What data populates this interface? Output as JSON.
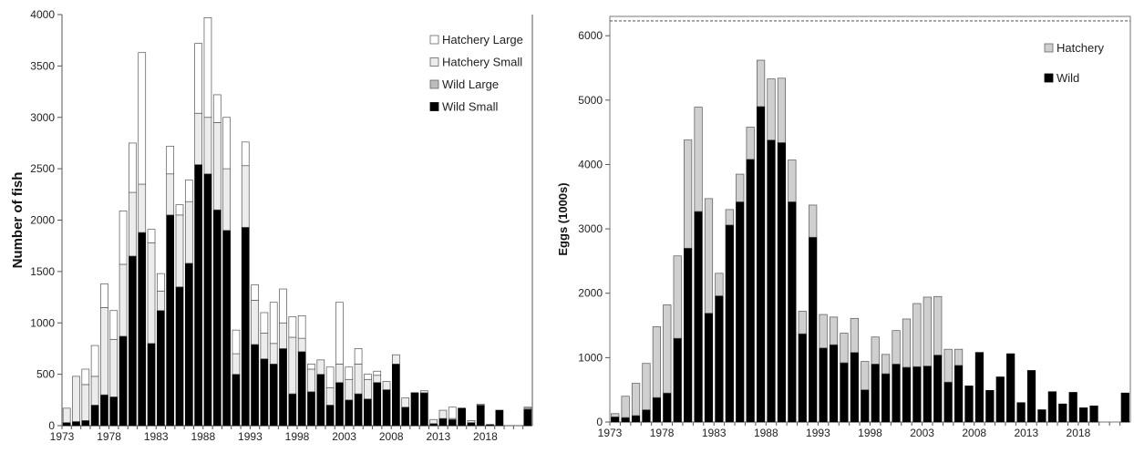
{
  "chart_data": [
    {
      "type": "bar",
      "stacked": true,
      "title": "",
      "xlabel": "",
      "ylabel": "Number of fish",
      "ylim": [
        0,
        4000
      ],
      "yticks": [
        0,
        500,
        1000,
        1500,
        2000,
        2500,
        3000,
        3500,
        4000
      ],
      "xtick_labels": [
        "1973",
        "1978",
        "1983",
        "1988",
        "1993",
        "1998",
        "2003",
        "2008",
        "2013",
        "2018"
      ],
      "legend_position": "top-right",
      "x": [
        1973,
        1974,
        1975,
        1976,
        1977,
        1978,
        1979,
        1980,
        1981,
        1982,
        1983,
        1984,
        1985,
        1986,
        1987,
        1988,
        1989,
        1990,
        1991,
        1992,
        1993,
        1994,
        1995,
        1996,
        1997,
        1998,
        1999,
        2000,
        2001,
        2002,
        2003,
        2004,
        2005,
        2006,
        2007,
        2008,
        2009,
        2010,
        2011,
        2012,
        2013,
        2014,
        2015,
        2016,
        2017,
        2018,
        2019,
        2020,
        2021,
        2022
      ],
      "series": [
        {
          "name": "Wild Small",
          "color": "#000000",
          "values": [
            30,
            40,
            50,
            200,
            300,
            280,
            870,
            1650,
            1880,
            800,
            1120,
            2050,
            1350,
            1580,
            2540,
            2450,
            2100,
            1900,
            500,
            1930,
            790,
            650,
            600,
            750,
            310,
            720,
            330,
            500,
            200,
            420,
            250,
            310,
            260,
            420,
            350,
            600,
            180,
            320,
            320,
            20,
            70,
            60,
            170,
            30,
            200,
            10,
            150,
            0,
            0,
            160
          ]
        },
        {
          "name": "Wild Large",
          "color": "#bdbdbd",
          "values": [
            0,
            0,
            0,
            0,
            0,
            0,
            0,
            0,
            0,
            0,
            0,
            0,
            0,
            0,
            0,
            0,
            0,
            0,
            0,
            0,
            0,
            0,
            0,
            0,
            0,
            0,
            0,
            0,
            0,
            0,
            0,
            0,
            0,
            0,
            0,
            0,
            0,
            0,
            0,
            0,
            0,
            0,
            0,
            0,
            0,
            0,
            0,
            0,
            0,
            0
          ]
        },
        {
          "name": "Hatchery Small",
          "color": "#ececec",
          "values": [
            140,
            440,
            350,
            280,
            850,
            560,
            700,
            620,
            470,
            980,
            190,
            400,
            700,
            600,
            500,
            550,
            850,
            600,
            200,
            600,
            430,
            250,
            200,
            250,
            550,
            130,
            220,
            140,
            170,
            180,
            200,
            290,
            190,
            70,
            80,
            90,
            90,
            0,
            20,
            40,
            80,
            10,
            0,
            20,
            10,
            0,
            0,
            0,
            0,
            10
          ]
        },
        {
          "name": "Hatchery Large",
          "color": "#ffffff",
          "values": [
            0,
            0,
            150,
            300,
            230,
            280,
            520,
            480,
            1280,
            130,
            170,
            270,
            100,
            210,
            680,
            970,
            270,
            500,
            230,
            230,
            150,
            200,
            400,
            330,
            200,
            220,
            50,
            0,
            200,
            600,
            120,
            150,
            50,
            40,
            0,
            0,
            0,
            0,
            0,
            0,
            0,
            110,
            0,
            0,
            0,
            0,
            0,
            0,
            0,
            10
          ]
        }
      ]
    },
    {
      "type": "bar",
      "stacked": true,
      "title": "",
      "xlabel": "",
      "ylabel": "Eggs (1000s)",
      "ylim": [
        0,
        6300
      ],
      "yticks": [
        0,
        1000,
        2000,
        3000,
        4000,
        5000,
        6000
      ],
      "reference_line": 6230,
      "xtick_labels": [
        "1973",
        "1978",
        "1983",
        "1988",
        "1993",
        "1998",
        "2003",
        "2008",
        "2013",
        "2018"
      ],
      "legend_position": "top-right",
      "x": [
        1973,
        1974,
        1975,
        1976,
        1977,
        1978,
        1979,
        1980,
        1981,
        1982,
        1983,
        1984,
        1985,
        1986,
        1987,
        1988,
        1989,
        1990,
        1991,
        1992,
        1993,
        1994,
        1995,
        1996,
        1997,
        1998,
        1999,
        2000,
        2001,
        2002,
        2003,
        2004,
        2005,
        2006,
        2007,
        2008,
        2009,
        2010,
        2011,
        2012,
        2013,
        2014,
        2015,
        2016,
        2017,
        2018,
        2019,
        2020,
        2021,
        2022
      ],
      "series": [
        {
          "name": "Wild",
          "color": "#000000",
          "values": [
            80,
            70,
            100,
            190,
            380,
            450,
            1300,
            2700,
            3270,
            1690,
            1960,
            3060,
            3420,
            4080,
            4900,
            4380,
            4340,
            3420,
            1370,
            2870,
            1150,
            1200,
            920,
            1080,
            500,
            900,
            750,
            900,
            850,
            860,
            870,
            1040,
            620,
            880,
            560,
            1080,
            490,
            700,
            1060,
            300,
            800,
            190,
            470,
            280,
            460,
            220,
            250,
            0,
            0,
            450
          ]
        },
        {
          "name": "Hatchery",
          "color": "#cfcfcf",
          "values": [
            50,
            330,
            500,
            720,
            1100,
            1370,
            1280,
            1680,
            1620,
            1780,
            350,
            240,
            430,
            500,
            720,
            950,
            1000,
            650,
            350,
            500,
            520,
            430,
            460,
            530,
            440,
            420,
            300,
            520,
            750,
            980,
            1070,
            910,
            510,
            250,
            0,
            0,
            0,
            0,
            0,
            0,
            0,
            0,
            0,
            0,
            0,
            0,
            0,
            0,
            0,
            0
          ]
        }
      ]
    }
  ]
}
